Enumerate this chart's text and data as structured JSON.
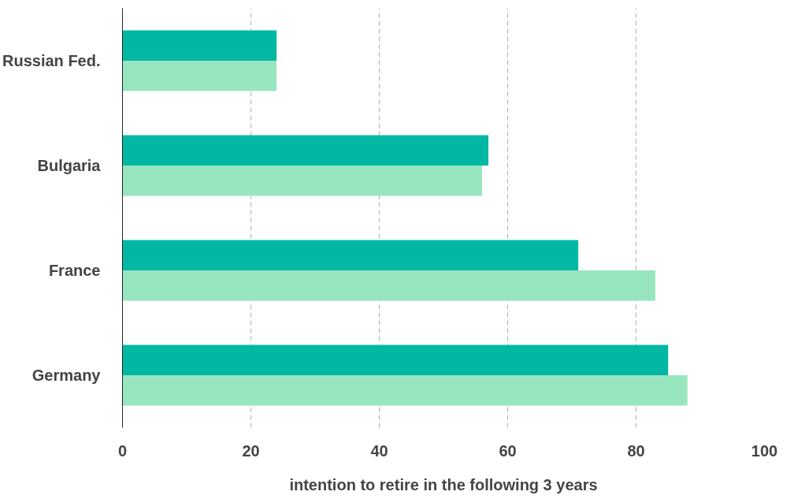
{
  "chart_data": {
    "type": "bar",
    "orientation": "horizontal",
    "xlabel": "intention to retire in the following 3 years",
    "categories": [
      "Russian Fed.",
      "Bulgaria",
      "France",
      "Germany"
    ],
    "series": [
      {
        "color": "#00b8a4",
        "values": [
          24,
          57,
          71,
          85
        ]
      },
      {
        "color": "#98e6c0",
        "values": [
          24,
          56,
          83,
          88
        ]
      }
    ],
    "xlim": [
      0,
      100
    ],
    "xticks": [
      0,
      20,
      40,
      60,
      80,
      100
    ],
    "grid": "x"
  }
}
